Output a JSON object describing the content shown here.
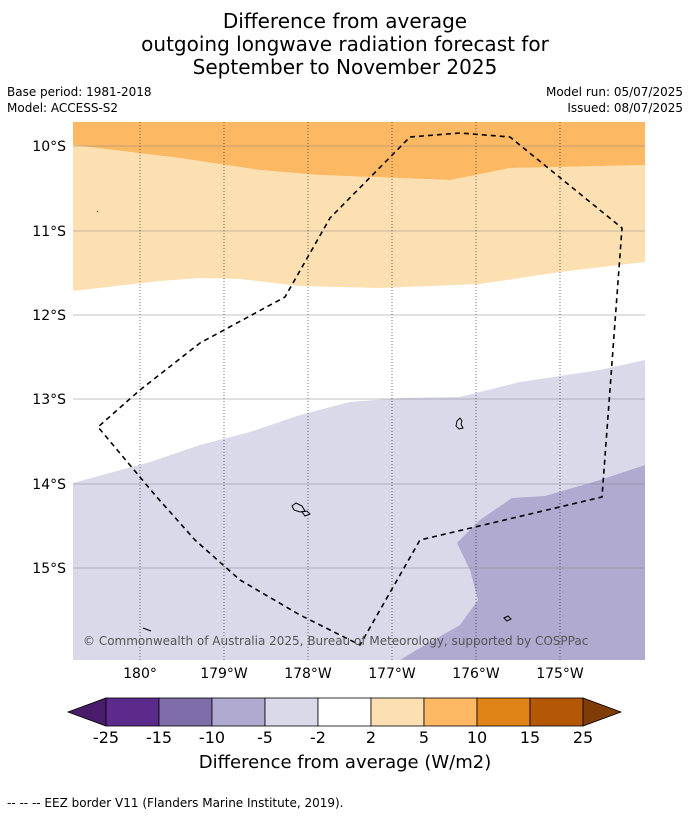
{
  "title_lines": [
    "Difference from average",
    "outgoing longwave radiation forecast for",
    "September to November 2025"
  ],
  "meta": {
    "base_period": "Base period: 1981-2018",
    "model": "Model: ACCESS-S2",
    "model_run": "Model run: 05/07/2025",
    "issued": "Issued: 08/07/2025"
  },
  "map": {
    "lat_labels": [
      "10°S",
      "11°S",
      "12°S",
      "13°S",
      "14°S",
      "15°S"
    ],
    "lon_labels": [
      "180°",
      "179°W",
      "178°W",
      "177°W",
      "176°W",
      "175°W"
    ],
    "copyright": "© Commonwealth of Australia 2025, Bureau of Meteorology, supported by COSPPac"
  },
  "colorbar": {
    "title": "Difference from average (W/m2)",
    "ticks": [
      "-25",
      "-15",
      "-10",
      "-5",
      "-2",
      "2",
      "5",
      "10",
      "15",
      "25"
    ],
    "colors": [
      "#4b1c6b",
      "#5b2a8a",
      "#7e6da8",
      "#b0a9d0",
      "#d9d9ea",
      "#ffffff",
      "#fde0b2",
      "#fcb862",
      "#e08418",
      "#b35806",
      "#7f3b08"
    ]
  },
  "footer": "--  --  -- EEZ border V11 (Flanders Marine Institute, 2019)."
}
